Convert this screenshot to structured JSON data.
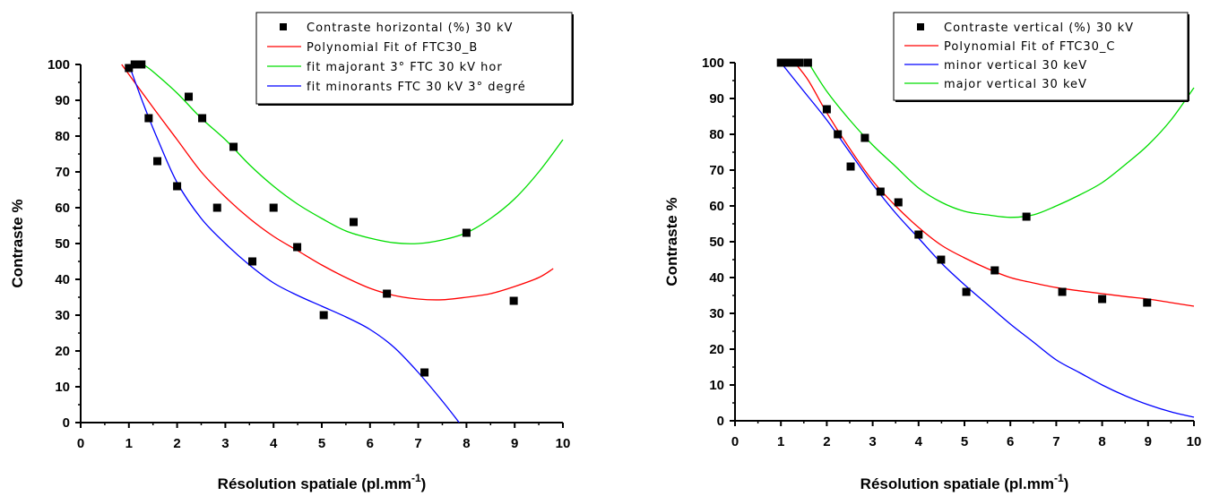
{
  "chart_data": [
    {
      "type": "scatter",
      "xlabel": "Résolution spatiale (pl.mm",
      "xlabel_sup": "-1",
      "xlabel_end": ")",
      "ylabel": "Contraste %",
      "xlim": [
        0,
        10
      ],
      "ylim": [
        0,
        100
      ],
      "xticks": [
        "0",
        "1",
        "2",
        "3",
        "4",
        "5",
        "6",
        "7",
        "8",
        "9",
        "10"
      ],
      "yticks": [
        "0",
        "10",
        "20",
        "30",
        "40",
        "50",
        "60",
        "70",
        "80",
        "90",
        "100"
      ],
      "legend_position": "top-right",
      "points": {
        "name": "Contraste horizontal (%) 30 kV",
        "color": "#000000",
        "x": [
          1.0,
          1.12,
          1.26,
          1.41,
          1.59,
          2.0,
          2.24,
          2.52,
          2.83,
          3.17,
          3.56,
          4.0,
          4.49,
          5.04,
          5.66,
          6.35,
          7.13,
          8.0,
          8.98
        ],
        "y": [
          99,
          100,
          100,
          85,
          73,
          66,
          91,
          85,
          60,
          77,
          45,
          60,
          49,
          30,
          56,
          36,
          14,
          53,
          34
        ]
      },
      "series": [
        {
          "name": "Polynomial Fit of FTC30_B",
          "color": "#ff0000",
          "x": [
            0.85,
            1.5,
            2.0,
            2.5,
            3.0,
            3.5,
            4.0,
            4.5,
            5.0,
            5.5,
            6.0,
            6.5,
            7.0,
            7.5,
            8.0,
            8.5,
            9.0,
            9.5,
            9.8
          ],
          "y": [
            100,
            88,
            79,
            70,
            63,
            57,
            52,
            48,
            44,
            40.5,
            37.5,
            35.5,
            34.5,
            34.3,
            35,
            36,
            38,
            40.5,
            43
          ]
        },
        {
          "name": "fit majorant 3° FTC 30 kV hor",
          "color": "#00dd00",
          "x": [
            1.3,
            1.5,
            2.0,
            2.5,
            3.0,
            3.5,
            4.0,
            4.5,
            5.0,
            5.5,
            6.0,
            6.5,
            7.0,
            7.5,
            8.0,
            8.5,
            9.0,
            9.5,
            10.0
          ],
          "y": [
            100,
            98,
            92,
            85,
            79,
            72,
            66,
            61,
            57,
            53.5,
            51.5,
            50.2,
            50,
            51,
            53,
            57,
            62.5,
            70,
            79
          ]
        },
        {
          "name": "fit minorants FTC 30 kV 3° degré",
          "color": "#0000ff",
          "x": [
            1.0,
            1.3,
            1.6,
            2.0,
            2.5,
            3.0,
            3.5,
            4.0,
            4.5,
            5.0,
            5.5,
            6.0,
            6.5,
            7.0,
            7.5,
            7.85
          ],
          "y": [
            100,
            89,
            79,
            67,
            57,
            50,
            44,
            39,
            35.5,
            32.5,
            29.5,
            26,
            21,
            14,
            6,
            0
          ]
        }
      ]
    },
    {
      "type": "scatter",
      "xlabel": "Résolution spatiale (pl.mm",
      "xlabel_sup": "-1",
      "xlabel_end": ")",
      "ylabel": "Contraste %",
      "xlim": [
        0,
        10
      ],
      "ylim": [
        0,
        100
      ],
      "xticks": [
        "0",
        "1",
        "2",
        "3",
        "4",
        "5",
        "6",
        "7",
        "8",
        "9",
        "10"
      ],
      "yticks": [
        "0",
        "10",
        "20",
        "30",
        "40",
        "50",
        "60",
        "70",
        "80",
        "90",
        "100"
      ],
      "legend_position": "top-right",
      "points": {
        "name": "Contraste vertical (%) 30 kV",
        "color": "#000000",
        "x": [
          1.0,
          1.12,
          1.26,
          1.41,
          1.59,
          2.0,
          2.24,
          2.52,
          2.83,
          3.17,
          3.56,
          4.0,
          4.49,
          5.04,
          5.66,
          6.35,
          7.13,
          8.0,
          8.98
        ],
        "y": [
          100,
          100,
          100,
          100,
          100,
          87,
          80,
          71,
          79,
          64,
          61,
          52,
          45,
          36,
          42,
          57,
          36,
          34,
          33
        ]
      },
      "series": [
        {
          "name": "Polynomial Fit of FTC30_C",
          "color": "#ff0000",
          "x": [
            1.3,
            1.6,
            2.0,
            2.5,
            3.0,
            3.5,
            4.0,
            4.5,
            5.0,
            5.5,
            6.0,
            6.5,
            7.0,
            7.5,
            8.0,
            8.5,
            9.0,
            9.5,
            10.0
          ],
          "y": [
            100,
            95,
            86,
            76,
            67,
            60,
            54,
            49,
            45.5,
            42.5,
            40,
            38.5,
            37.2,
            36.3,
            35.5,
            34.7,
            34,
            33,
            32
          ]
        },
        {
          "name": "minor vertical 30 keV",
          "color": "#0000ff",
          "x": [
            1.0,
            1.5,
            2.0,
            2.5,
            3.0,
            3.5,
            4.0,
            4.5,
            5.0,
            5.5,
            6.0,
            6.5,
            7.0,
            7.5,
            8.0,
            8.5,
            9.0,
            9.5,
            10.0
          ],
          "y": [
            100,
            92,
            84,
            75,
            66,
            58,
            51,
            44,
            38,
            32.5,
            27,
            22,
            17,
            13.5,
            10,
            7,
            4.5,
            2.5,
            1
          ]
        },
        {
          "name": "major vertical 30 keV",
          "color": "#00dd00",
          "x": [
            1.6,
            2.0,
            2.5,
            3.0,
            3.5,
            4.0,
            4.5,
            5.0,
            5.5,
            6.0,
            6.5,
            7.0,
            7.5,
            8.0,
            8.5,
            9.0,
            9.5,
            10.0
          ],
          "y": [
            100,
            92,
            84,
            77,
            71,
            65,
            61,
            58.5,
            57.5,
            56.8,
            57.5,
            60,
            63,
            66.5,
            71.5,
            77,
            84,
            93
          ]
        }
      ]
    }
  ]
}
